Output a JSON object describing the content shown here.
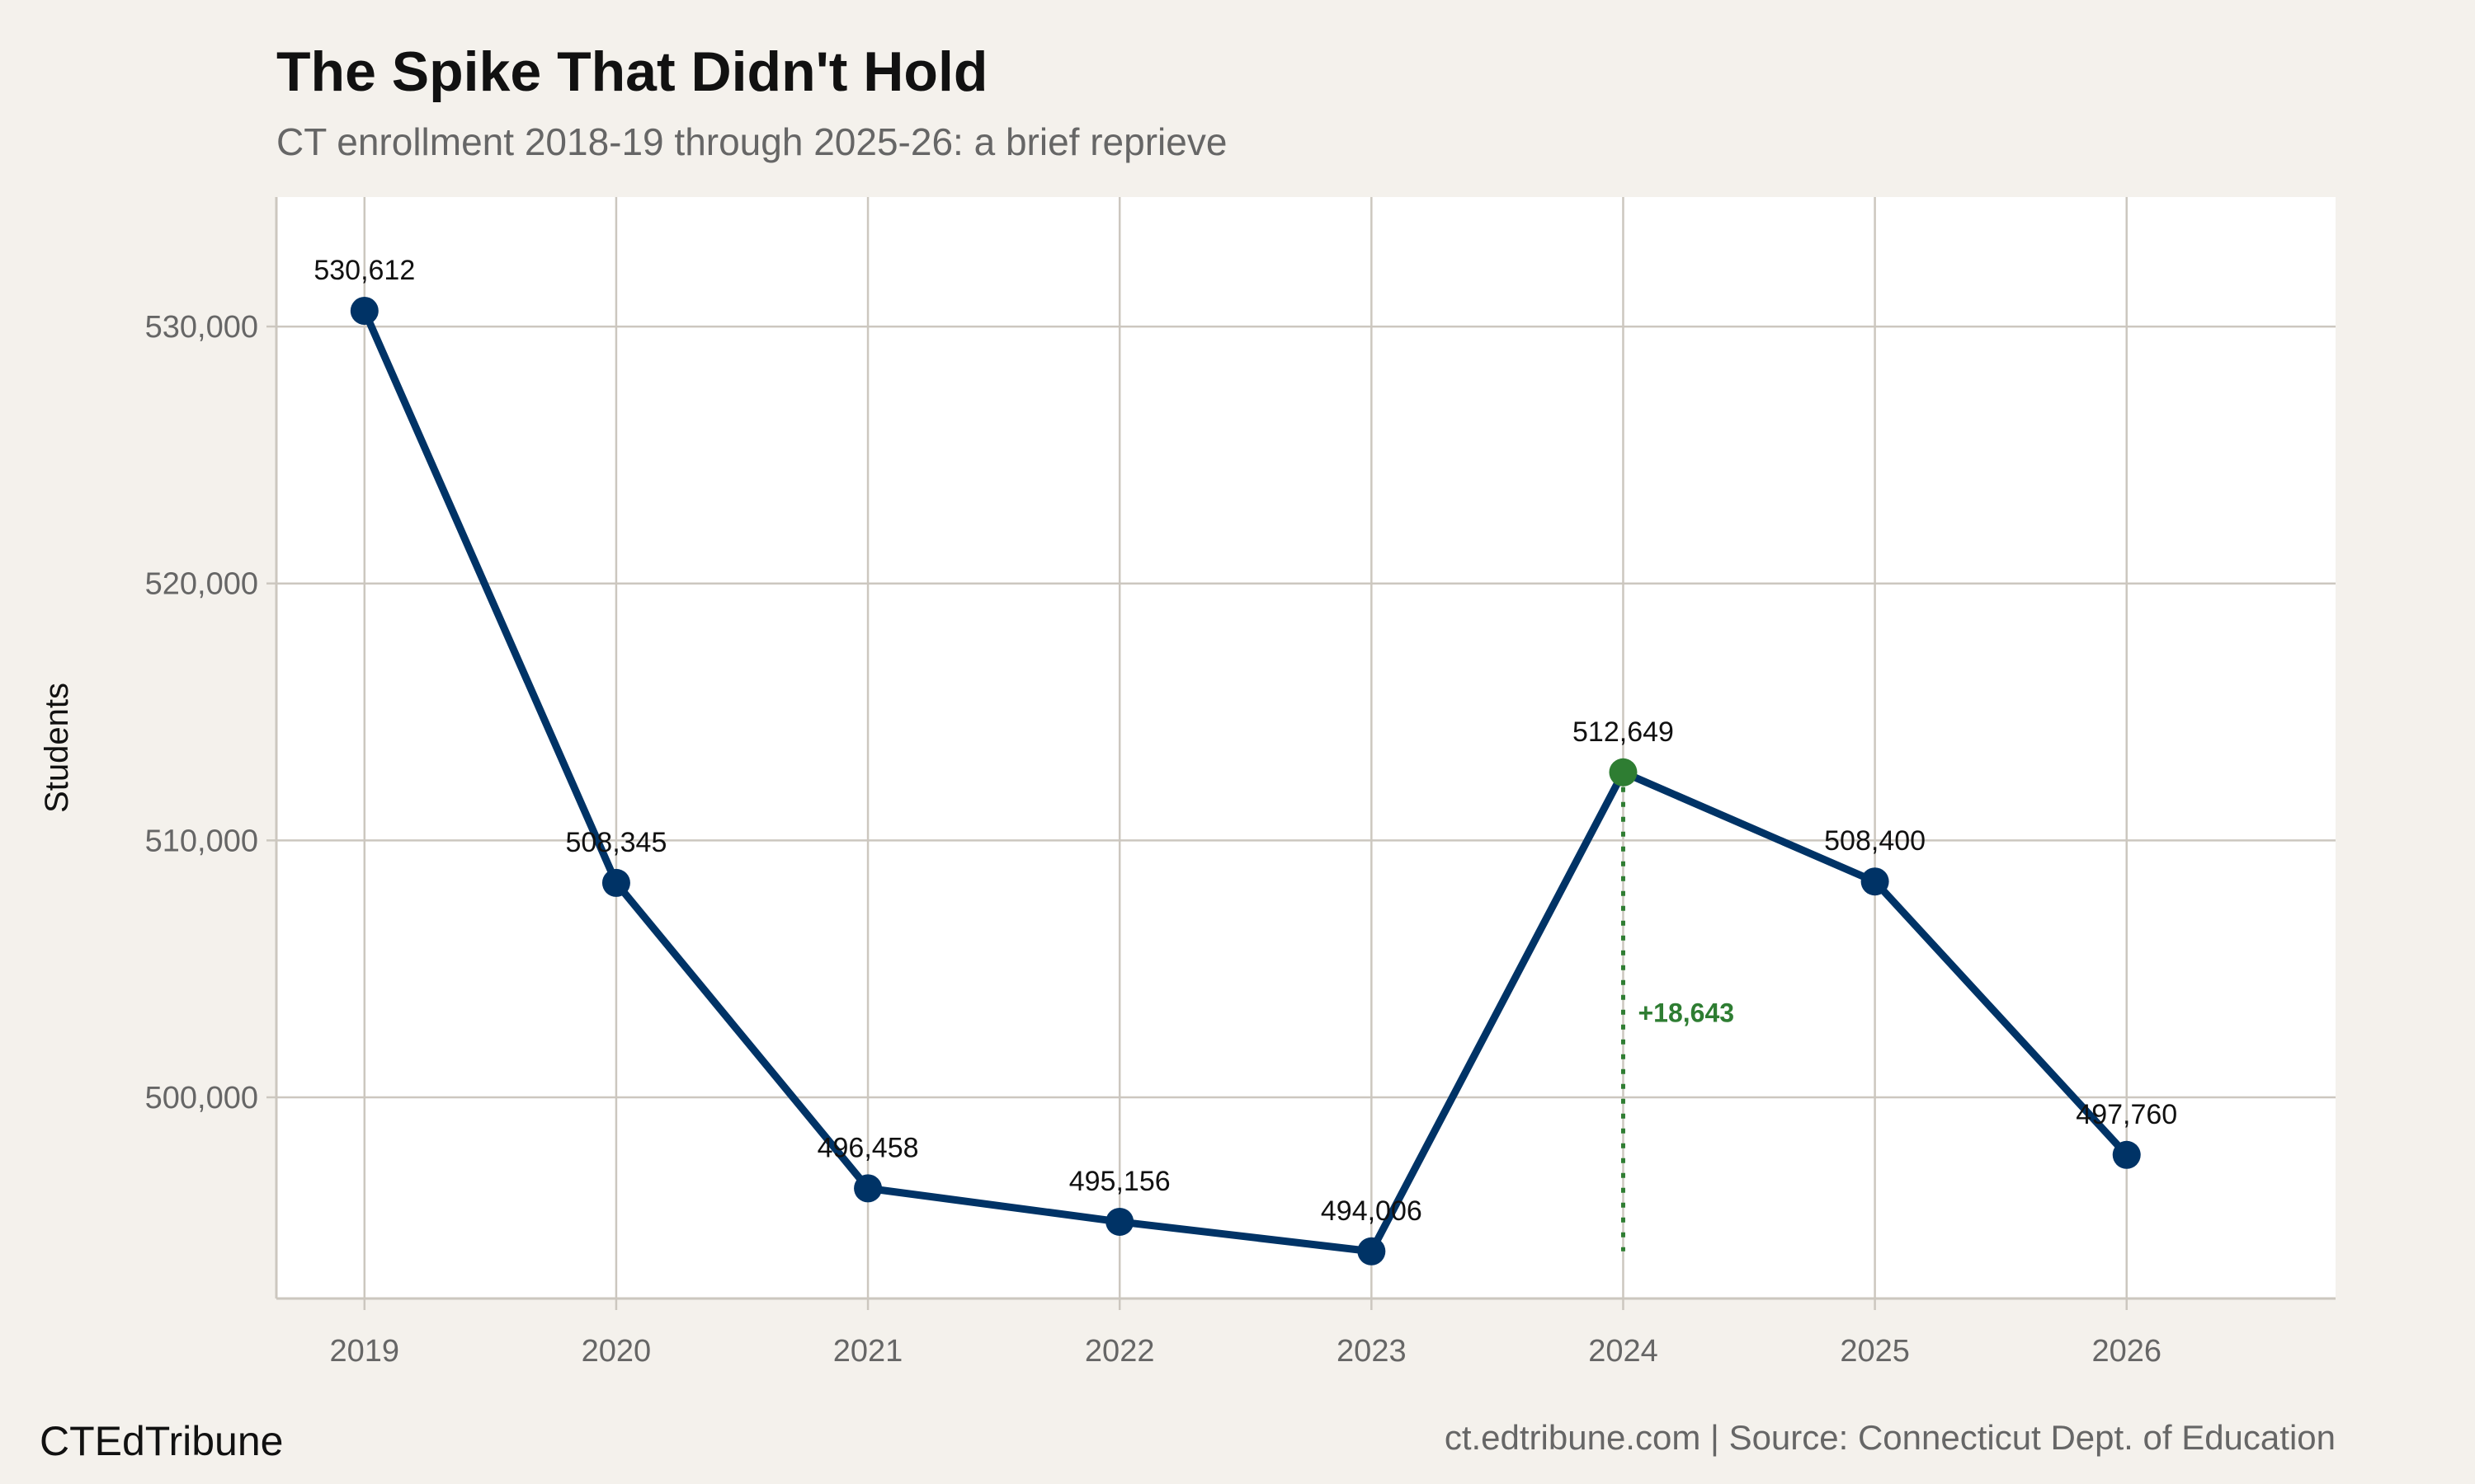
{
  "chart_data": {
    "type": "line",
    "title": "The Spike That Didn't Hold",
    "subtitle": "CT enrollment 2018-19 through 2025-26: a brief reprieve",
    "xlabel": "",
    "ylabel": "Students",
    "x": [
      2019,
      2020,
      2021,
      2022,
      2023,
      2024,
      2025,
      2026
    ],
    "values": [
      530612,
      508345,
      496458,
      495156,
      494006,
      512649,
      508400,
      497760
    ],
    "point_labels": [
      "530,612",
      "508,345",
      "496,458",
      "495,156",
      "494,006",
      "512,649",
      "508,400",
      "497,760"
    ],
    "x_ticks": [
      "2019",
      "2020",
      "2021",
      "2022",
      "2023",
      "2024",
      "2025",
      "2026"
    ],
    "y_ticks": [
      500000,
      510000,
      520000,
      530000
    ],
    "y_tick_labels": [
      "500,000",
      "510,000",
      "520,000",
      "530,000"
    ],
    "xlim": [
      2018.65,
      2026.83
    ],
    "ylim": [
      492170,
      535040
    ],
    "grid": true,
    "highlight": {
      "x": 2024,
      "from": 494006,
      "to": 512649,
      "label": "+18,643"
    },
    "colors": {
      "line": "#003366",
      "highlight": "#2e7d32",
      "grid": "#ccc7bf",
      "background": "#f4f1ec",
      "panel": "#ffffff"
    }
  },
  "footer": {
    "brand": "CTEdTribune",
    "source": "ct.edtribune.com | Source: Connecticut Dept. of Education"
  }
}
